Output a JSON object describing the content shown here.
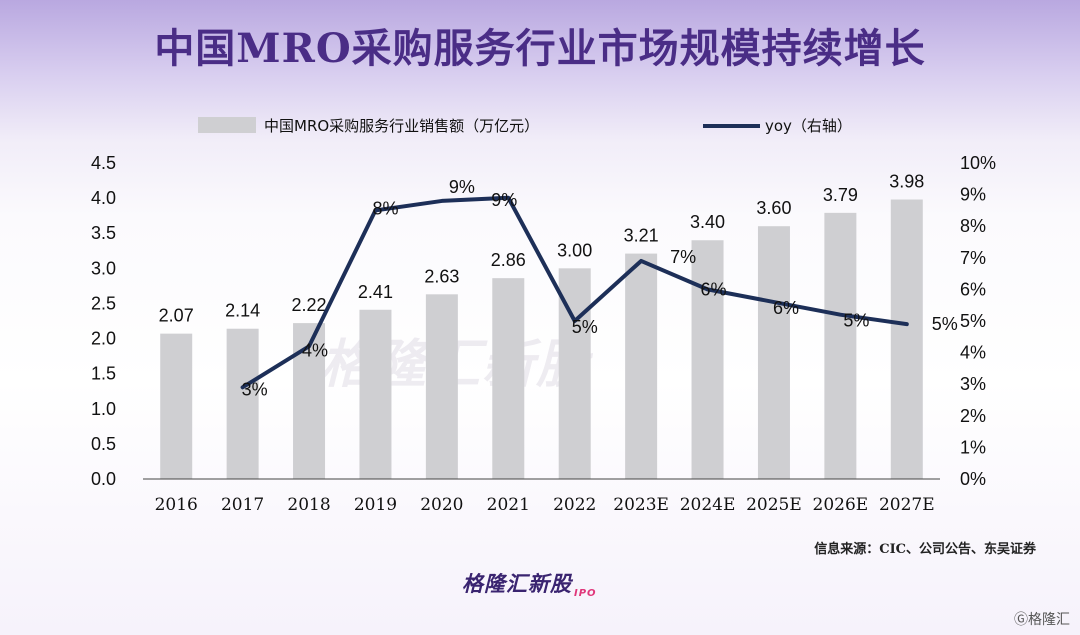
{
  "title": "中国MRO采购服务行业市场规模持续增长",
  "source": "信息来源：CIC、公司公告、东吴证券",
  "logo": {
    "text": "格隆汇新股",
    "suffix": "IPO"
  },
  "watermark": "格隆汇新股",
  "corner_mark": "Ⓖ格隆汇",
  "colors": {
    "bar": "#cfcfd2",
    "line": "#1d2f58",
    "title": "#4a2d86"
  },
  "chart_data": {
    "type": "bar+line",
    "categories": [
      "2016",
      "2017",
      "2018",
      "2019",
      "2020",
      "2021",
      "2022",
      "2023E",
      "2024E",
      "2025E",
      "2026E",
      "2027E"
    ],
    "series": [
      {
        "name": "中国MRO采购服务行业销售额（万亿元）",
        "type": "bar",
        "axis": "left",
        "values": [
          2.07,
          2.14,
          2.22,
          2.41,
          2.63,
          2.86,
          3.0,
          3.21,
          3.4,
          3.6,
          3.79,
          3.98
        ],
        "labels": [
          "2.07",
          "2.14",
          "2.22",
          "2.41",
          "2.63",
          "2.86",
          "3.00",
          "3.21",
          "3.40",
          "3.60",
          "3.79",
          "3.98"
        ]
      },
      {
        "name": "yoy（右轴）",
        "type": "line",
        "axis": "right",
        "values": [
          null,
          2.9,
          4.2,
          8.5,
          8.8,
          8.9,
          5.0,
          6.9,
          6.0,
          5.6,
          5.2,
          4.9
        ],
        "labels": [
          null,
          "3%",
          "4%",
          "8%",
          "9%",
          "9%",
          "5%",
          "7%",
          "6%",
          "6%",
          "5%",
          "5%"
        ]
      }
    ],
    "y_left": {
      "range": [
        0,
        4.5
      ],
      "ticks": [
        "0.0",
        "0.5",
        "1.0",
        "1.5",
        "2.0",
        "2.5",
        "3.0",
        "3.5",
        "4.0",
        "4.5"
      ]
    },
    "y_right": {
      "range": [
        0,
        10
      ],
      "ticks": [
        "0%",
        "1%",
        "2%",
        "3%",
        "4%",
        "5%",
        "6%",
        "7%",
        "8%",
        "9%",
        "10%"
      ]
    },
    "legend_position": "top",
    "grid": false
  }
}
